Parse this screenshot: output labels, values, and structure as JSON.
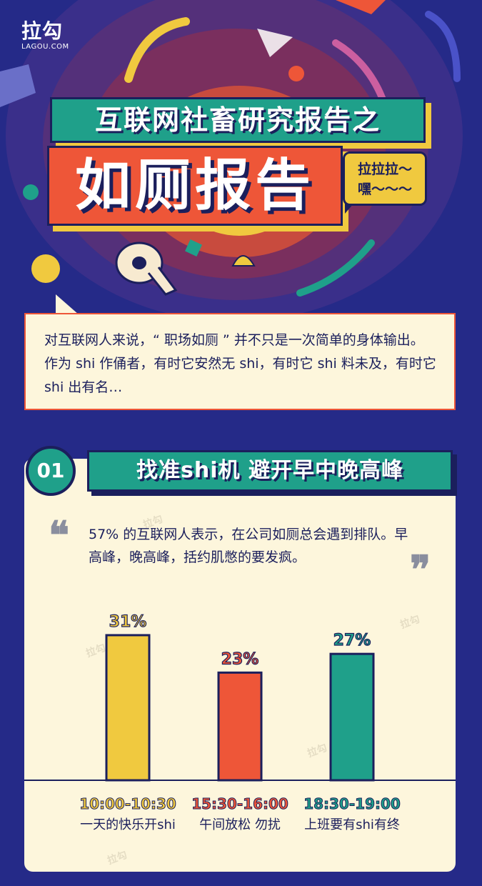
{
  "brand": {
    "name": "拉勾",
    "domain": "LAGOU.COM"
  },
  "header": {
    "title_line1": "互联网社畜研究报告之",
    "title_line2": "如厕报告",
    "bubble": "拉拉拉～\n嘿～～～"
  },
  "intro": {
    "text": "对互联网人来说，“ 职场如厕 ” 并不只是一次简单的身体输出。作为 shi 作俑者，有时它安然无 shi，有时它 shi 料未及，有时它 shi 出有名…"
  },
  "section": {
    "number": "01",
    "title": "找准shi机 避开早中晚高峰",
    "quote": "57% 的互联网人表示，在公司如厕总会遇到排队。早高峰，晚高峰，括约肌憋的要发疯。",
    "open_quote": "❝",
    "close_quote": "❞"
  },
  "colors": {
    "navy": "#1b1f5c",
    "teal": "#1fa08a",
    "red": "#ee5638",
    "yellow": "#f0c93f",
    "cream": "#fdf6dc"
  },
  "chart_data": {
    "type": "bar",
    "categories": [
      "10:00-10:30",
      "15:30-16:00",
      "18:30-19:00"
    ],
    "subtitles": [
      "一天的快乐开shi",
      "午间放松 勿扰",
      "上班要有shi有终"
    ],
    "values": [
      31,
      23,
      27
    ],
    "value_labels": [
      "31%",
      "23%",
      "27%"
    ],
    "bar_colors": [
      "#f0c93f",
      "#ee5638",
      "#1fa08a"
    ],
    "label_colors": [
      "#f0c93f",
      "#ee5638",
      "#1fa08a"
    ],
    "ylim": [
      0,
      40
    ],
    "grid": false,
    "title": "",
    "xlabel": "",
    "ylabel": ""
  }
}
